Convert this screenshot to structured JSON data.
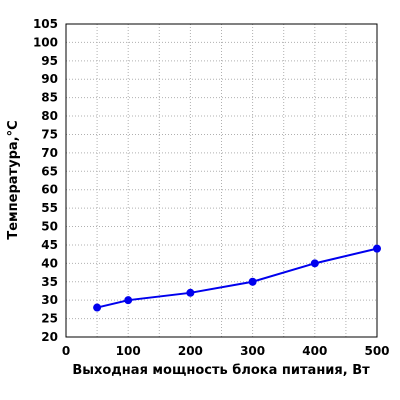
{
  "chart_data": {
    "type": "line",
    "title": "",
    "xlabel": "Выходная мощность блока питания, Вт",
    "ylabel": "Температура,°C",
    "xlim": [
      0,
      500
    ],
    "ylim": [
      20,
      105
    ],
    "xticks": [
      "0",
      "100",
      "200",
      "300",
      "400",
      "500"
    ],
    "yticks": [
      "20",
      "25",
      "30",
      "35",
      "40",
      "45",
      "50",
      "55",
      "60",
      "65",
      "70",
      "75",
      "80",
      "85",
      "90",
      "95",
      "100",
      "105"
    ],
    "grid": true,
    "legend": "none",
    "series": [
      {
        "color": "#0000ee",
        "x": [
          50,
          100,
          200,
          300,
          400,
          500
        ],
        "y": [
          28,
          30,
          32,
          35,
          40,
          44
        ]
      }
    ]
  }
}
